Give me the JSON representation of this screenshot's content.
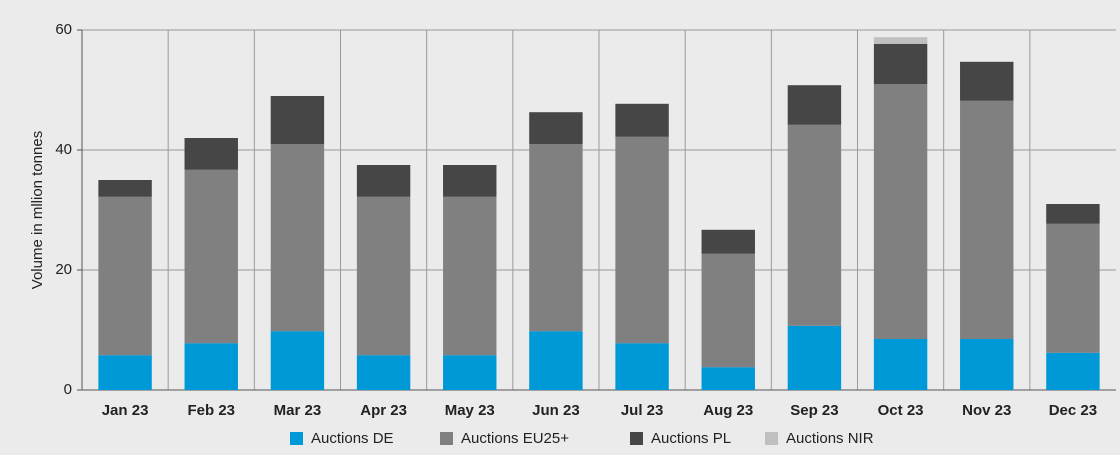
{
  "chart_data": {
    "type": "stacked_bar",
    "y_label": "Volume in mllion tonnes",
    "categories": [
      "Jan 23",
      "Feb 23",
      "Mar 23",
      "Apr 23",
      "May 23",
      "Jun 23",
      "Jul 23",
      "Aug 23",
      "Sep 23",
      "Oct 23",
      "Nov 23",
      "Dec 23"
    ],
    "series": [
      {
        "name": "Auctions DE",
        "color": "#0099d8",
        "values": [
          5.8,
          7.8,
          9.8,
          5.8,
          5.8,
          9.8,
          7.8,
          3.8,
          10.7,
          8.5,
          8.5,
          6.2
        ]
      },
      {
        "name": "Auctions EU25+",
        "color": "#808080",
        "values": [
          26.4,
          28.9,
          31.2,
          26.4,
          26.4,
          31.2,
          34.4,
          18.9,
          33.5,
          42.5,
          39.7,
          21.5
        ]
      },
      {
        "name": "Auctions PL",
        "color": "#464646",
        "values": [
          2.8,
          5.3,
          8,
          5.3,
          5.3,
          5.3,
          5.5,
          4,
          6.6,
          6.7,
          6.5,
          3.3
        ]
      },
      {
        "name": "Auctions NIR",
        "color": "#c0c0c0",
        "values": [
          0,
          0,
          0,
          0,
          0,
          0,
          0,
          0,
          0,
          1.1,
          0,
          0
        ]
      }
    ],
    "ylim": [
      0,
      60
    ],
    "yticks": [
      0,
      20,
      40,
      60
    ],
    "grid": true,
    "legend": "bottom"
  }
}
